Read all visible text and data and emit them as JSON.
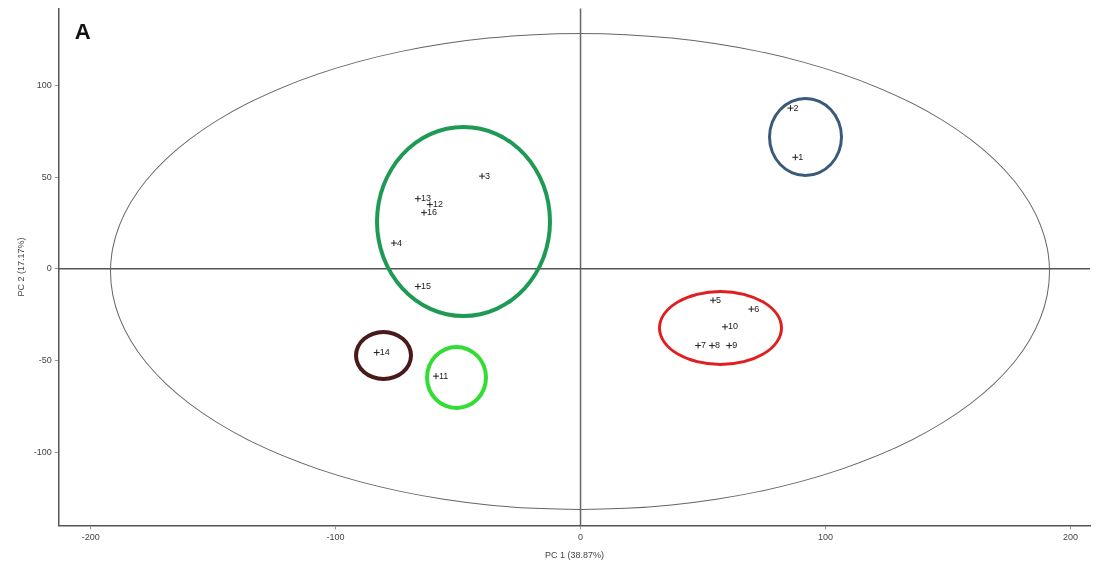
{
  "chart_data": {
    "type": "scatter",
    "title": "A",
    "xlabel": "PC 1 (38.87%)",
    "ylabel": "PC 2 (17.17%)",
    "xlim": [
      -213,
      208
    ],
    "xticks": [
      -200,
      -100,
      0,
      100,
      200
    ],
    "ylim": [
      -140,
      142
    ],
    "yticks": [
      -100,
      -50,
      0,
      50,
      100
    ],
    "grid": false,
    "legend": false,
    "marker": "cross",
    "series": [
      {
        "color": "#222222",
        "x": [
          85.7,
          87.7,
          -40.2,
          -76.2,
          54.1,
          69.7,
          48,
          53.7,
          60.7,
          59,
          -59,
          -61.5,
          -66.4,
          -83.2,
          -66.4,
          -63.9
        ],
        "values": [
          87.6,
          60.8,
          50.5,
          14,
          -17.2,
          -22,
          -41.9,
          -41.9,
          -41.9,
          -31.7,
          -58.6,
          35,
          38.2,
          -45.7,
          -9.7,
          30.6
        ]
      }
    ],
    "annotations": [
      {
        "text": "2",
        "x": 85.7,
        "y": 87.6
      },
      {
        "text": "1",
        "x": 87.7,
        "y": 60.8
      },
      {
        "text": "3",
        "x": -40.2,
        "y": 50.5
      },
      {
        "text": "4",
        "x": -76.2,
        "y": 14
      },
      {
        "text": "5",
        "x": 54.1,
        "y": -17.2
      },
      {
        "text": "6",
        "x": 69.7,
        "y": -22
      },
      {
        "text": "7",
        "x": 48,
        "y": -41.9
      },
      {
        "text": "8",
        "x": 53.7,
        "y": -41.9
      },
      {
        "text": "9",
        "x": 60.7,
        "y": -41.9
      },
      {
        "text": "10",
        "x": 59,
        "y": -31.7
      },
      {
        "text": "11",
        "x": -59,
        "y": -58.6
      },
      {
        "text": "12",
        "x": -61.5,
        "y": 35
      },
      {
        "text": "13",
        "x": -66.4,
        "y": 38.2
      },
      {
        "text": "14",
        "x": -83.2,
        "y": -45.7
      },
      {
        "text": "15",
        "x": -66.4,
        "y": -9.7
      },
      {
        "text": "16",
        "x": -63.9,
        "y": 30.6
      }
    ],
    "ref_lines": [
      {
        "axis": "x",
        "value": 0,
        "color": "#666666"
      },
      {
        "axis": "y",
        "value": 0,
        "color": "#555555"
      }
    ]
  }
}
